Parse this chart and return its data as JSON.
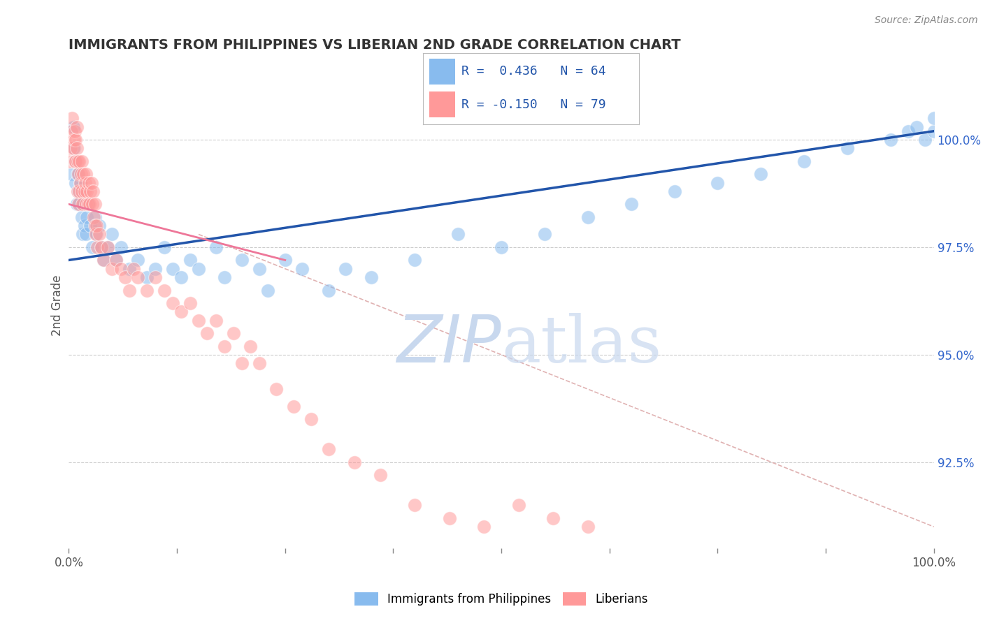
{
  "title": "IMMIGRANTS FROM PHILIPPINES VS LIBERIAN 2ND GRADE CORRELATION CHART",
  "source_text": "Source: ZipAtlas.com",
  "ylabel": "2nd Grade",
  "ylabel_right_ticks": [
    100.0,
    97.5,
    95.0,
    92.5
  ],
  "ylabel_right_labels": [
    "100.0%",
    "97.5%",
    "95.0%",
    "92.5%"
  ],
  "legend_bottom": [
    "Immigrants from Philippines",
    "Liberians"
  ],
  "blue_color": "#88BBEE",
  "pink_color": "#FF9999",
  "blue_line_color": "#2255AA",
  "pink_line_color": "#EE7799",
  "diagonal_color": "#DDAAAA",
  "background_color": "#FFFFFF",
  "grid_color": "#CCCCCC",
  "title_color": "#333333",
  "right_label_color": "#3366CC",
  "watermark_color": "#C8D8EE",
  "x_min": 0.0,
  "x_max": 100.0,
  "y_min": 90.5,
  "y_max": 101.8,
  "blue_x": [
    0.3,
    0.5,
    0.6,
    0.7,
    0.8,
    0.9,
    1.0,
    1.1,
    1.2,
    1.3,
    1.5,
    1.6,
    1.7,
    1.8,
    2.0,
    2.1,
    2.2,
    2.5,
    2.7,
    3.0,
    3.2,
    3.5,
    3.8,
    4.0,
    4.5,
    5.0,
    5.5,
    6.0,
    7.0,
    8.0,
    9.0,
    10.0,
    11.0,
    12.0,
    13.0,
    14.0,
    15.0,
    17.0,
    18.0,
    20.0,
    22.0,
    23.0,
    25.0,
    27.0,
    30.0,
    32.0,
    35.0,
    40.0,
    45.0,
    50.0,
    55.0,
    60.0,
    65.0,
    70.0,
    75.0,
    80.0,
    85.0,
    90.0,
    95.0,
    97.0,
    98.0,
    99.0,
    100.0,
    100.0
  ],
  "blue_y": [
    99.2,
    100.3,
    99.8,
    99.5,
    99.0,
    98.5,
    99.2,
    98.8,
    98.5,
    99.0,
    98.2,
    97.8,
    98.5,
    98.0,
    97.8,
    98.2,
    98.5,
    98.0,
    97.5,
    98.2,
    97.8,
    98.0,
    97.5,
    97.2,
    97.5,
    97.8,
    97.2,
    97.5,
    97.0,
    97.2,
    96.8,
    97.0,
    97.5,
    97.0,
    96.8,
    97.2,
    97.0,
    97.5,
    96.8,
    97.2,
    97.0,
    96.5,
    97.2,
    97.0,
    96.5,
    97.0,
    96.8,
    97.2,
    97.8,
    97.5,
    97.8,
    98.2,
    98.5,
    98.8,
    99.0,
    99.2,
    99.5,
    99.8,
    100.0,
    100.2,
    100.3,
    100.0,
    100.2,
    100.5
  ],
  "pink_x": [
    0.1,
    0.2,
    0.3,
    0.4,
    0.5,
    0.6,
    0.7,
    0.7,
    0.8,
    0.8,
    0.9,
    0.9,
    1.0,
    1.0,
    1.1,
    1.1,
    1.2,
    1.2,
    1.3,
    1.4,
    1.5,
    1.5,
    1.6,
    1.7,
    1.8,
    1.9,
    2.0,
    2.0,
    2.1,
    2.2,
    2.3,
    2.4,
    2.5,
    2.6,
    2.7,
    2.8,
    2.9,
    3.0,
    3.0,
    3.1,
    3.2,
    3.3,
    3.5,
    3.8,
    4.0,
    4.5,
    5.0,
    5.5,
    6.0,
    6.5,
    7.0,
    7.5,
    8.0,
    9.0,
    10.0,
    11.0,
    12.0,
    13.0,
    14.0,
    15.0,
    16.0,
    17.0,
    18.0,
    19.0,
    20.0,
    21.0,
    22.0,
    24.0,
    26.0,
    28.0,
    30.0,
    33.0,
    36.0,
    40.0,
    44.0,
    48.0,
    52.0,
    56.0,
    60.0
  ],
  "pink_y": [
    99.5,
    99.8,
    100.2,
    100.5,
    99.8,
    100.0,
    99.5,
    100.2,
    100.0,
    99.5,
    99.8,
    100.3,
    99.5,
    98.8,
    99.2,
    98.5,
    99.5,
    98.8,
    99.0,
    99.2,
    98.8,
    99.5,
    98.5,
    99.2,
    98.8,
    99.0,
    98.5,
    99.2,
    98.8,
    98.5,
    99.0,
    98.5,
    98.8,
    99.0,
    98.5,
    98.8,
    98.2,
    98.5,
    98.0,
    97.8,
    98.0,
    97.5,
    97.8,
    97.5,
    97.2,
    97.5,
    97.0,
    97.2,
    97.0,
    96.8,
    96.5,
    97.0,
    96.8,
    96.5,
    96.8,
    96.5,
    96.2,
    96.0,
    96.2,
    95.8,
    95.5,
    95.8,
    95.2,
    95.5,
    94.8,
    95.2,
    94.8,
    94.2,
    93.8,
    93.5,
    92.8,
    92.5,
    92.2,
    91.5,
    91.2,
    91.0,
    91.5,
    91.2,
    91.0
  ],
  "blue_line_y0": 97.2,
  "blue_line_y1": 100.2,
  "pink_line_x0": 0.0,
  "pink_line_y0": 98.5,
  "pink_line_x1": 25.0,
  "pink_line_y1": 97.2,
  "diag_x0": 15.0,
  "diag_y0": 97.8,
  "diag_x1": 100.0,
  "diag_y1": 91.0
}
